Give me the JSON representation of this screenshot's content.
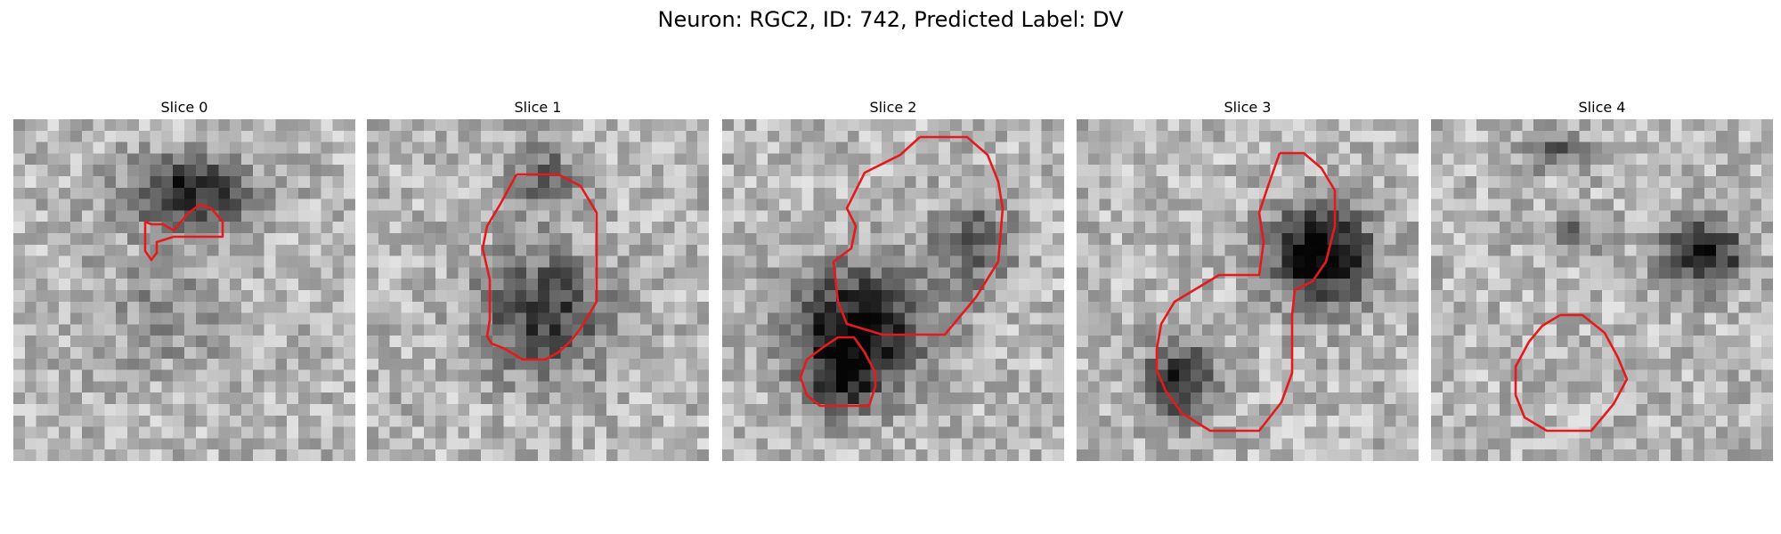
{
  "figure": {
    "title": "Neuron: RGC2, ID: 742, Predicted Label: DV"
  },
  "contour_color": "#e41a1c",
  "slices": [
    {
      "title": "Slice 0"
    },
    {
      "title": "Slice 1"
    },
    {
      "title": "Slice 2"
    },
    {
      "title": "Slice 3"
    },
    {
      "title": "Slice 4"
    }
  ]
}
